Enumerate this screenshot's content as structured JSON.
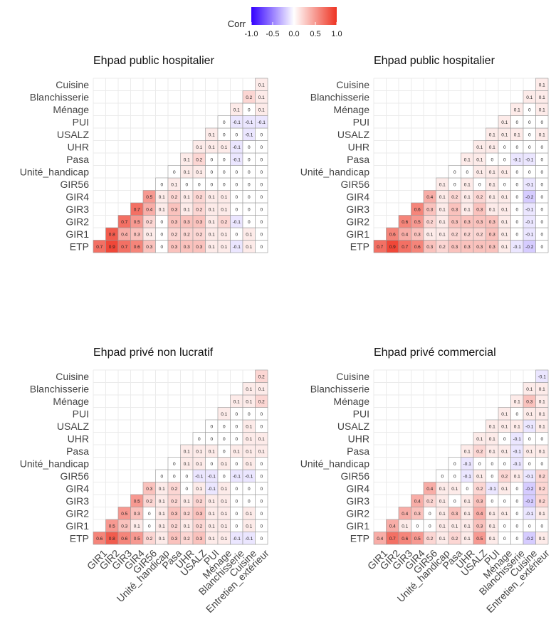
{
  "legend": {
    "title": "Corr",
    "ticks": [
      "-1.0",
      "-0.5",
      "0.0",
      "0.5",
      "1.0"
    ],
    "colors": {
      "low": "#3300ff",
      "mid": "#ffffff",
      "high": "#ee3322"
    },
    "range": [
      -1,
      1
    ]
  },
  "chart_data": [
    {
      "type": "heatmap",
      "title": "Ehpad public hospitalier",
      "show_x_labels": false,
      "y_labels": [
        "ETP",
        "GIR1",
        "GIR2",
        "GIR3",
        "GIR4",
        "GIR56",
        "Unité_handicap",
        "Pasa",
        "UHR",
        "USALZ",
        "PUI",
        "Ménage",
        "Blanchisserie",
        "Cuisine"
      ],
      "x_labels": [
        "GIR1",
        "GIR2",
        "GIR3",
        "GIR4",
        "GIR56",
        "Unité_handicap",
        "Pasa",
        "UHR",
        "USALZ",
        "PUI",
        "Ménage",
        "Blanchisserie",
        "Cuisine",
        "Entretien_extérieur"
      ],
      "rows": [
        [
          0.7,
          0.9,
          0.7,
          0.6,
          0.3,
          0,
          0.3,
          0.3,
          0.3,
          0.1,
          0.1,
          -0.1,
          0.1,
          0
        ],
        [
          0.8,
          0.4,
          0.3,
          0.1,
          0,
          0.2,
          0.2,
          0.2,
          0.1,
          0.1,
          0,
          0.1,
          0
        ],
        [
          0.7,
          0.5,
          0.2,
          0,
          0.3,
          0.3,
          0.3,
          0.1,
          0.2,
          -0.1,
          0,
          0
        ],
        [
          0.7,
          0.4,
          0.1,
          0.3,
          0.1,
          0.2,
          0.1,
          0.1,
          0,
          0,
          0
        ],
        [
          0.5,
          0.1,
          0.2,
          0.1,
          0.2,
          0.1,
          0.1,
          0,
          0,
          0
        ],
        [
          0,
          0.1,
          0,
          0,
          0,
          0,
          0,
          0,
          0
        ],
        [
          0,
          0.1,
          0.1,
          0,
          0,
          0,
          0,
          0
        ],
        [
          0.1,
          0.2,
          0,
          0,
          -0.1,
          0,
          0
        ],
        [
          0.1,
          0.1,
          0.1,
          -0.1,
          0,
          0
        ],
        [
          0.1,
          0,
          0,
          -0.1,
          0
        ],
        [
          0,
          -0.1,
          -0.1,
          -0.1
        ],
        [
          0.1,
          0,
          0.1
        ],
        [
          0.2,
          0.1
        ],
        [
          0.1
        ]
      ]
    },
    {
      "type": "heatmap",
      "title": "Ehpad public hospitalier",
      "show_x_labels": false,
      "y_labels": [
        "ETP",
        "GIR1",
        "GIR2",
        "GIR3",
        "GIR4",
        "GIR56",
        "Unité_handicap",
        "Pasa",
        "UHR",
        "USALZ",
        "PUI",
        "Ménage",
        "Blanchisserie",
        "Cuisine"
      ],
      "x_labels": [
        "GIR1",
        "GIR2",
        "GIR3",
        "GIR4",
        "GIR56",
        "Unité_handicap",
        "Pasa",
        "UHR",
        "USALZ",
        "PUI",
        "Ménage",
        "Blanchisserie",
        "Cuisine",
        "Entretien_extérieur"
      ],
      "rows": [
        [
          0.7,
          0.9,
          0.7,
          0.6,
          0.3,
          0.2,
          0.3,
          0.3,
          0.3,
          0.3,
          0.1,
          -0.1,
          -0.2,
          0
        ],
        [
          0.6,
          0.4,
          0.3,
          0.1,
          0.1,
          0.2,
          0.2,
          0.2,
          0.3,
          0.1,
          0,
          -0.1,
          0
        ],
        [
          0.6,
          0.5,
          0.2,
          0.1,
          0.3,
          0.3,
          0.3,
          0.3,
          0.1,
          0,
          -0.1,
          0
        ],
        [
          0.6,
          0.3,
          0.1,
          0.3,
          0.1,
          0.3,
          0.1,
          0.1,
          0,
          -0.1,
          0
        ],
        [
          0.4,
          0.1,
          0.2,
          0.1,
          0.2,
          0.1,
          0.1,
          0,
          -0.2,
          0
        ],
        [
          0.1,
          0,
          0.1,
          0,
          0.1,
          0,
          0,
          -0.1,
          0
        ],
        [
          0,
          0,
          0.1,
          0.1,
          0.1,
          0,
          0,
          0
        ],
        [
          0.1,
          0.1,
          0,
          0,
          -0.1,
          -0.1,
          0
        ],
        [
          0.1,
          0.1,
          0,
          0,
          0,
          0
        ],
        [
          0.1,
          0.1,
          0.1,
          0,
          0.1
        ],
        [
          0.1,
          0,
          0,
          0
        ],
        [
          0.1,
          0,
          0.1
        ],
        [
          0.1,
          0.1
        ],
        [
          0.1
        ]
      ]
    },
    {
      "type": "heatmap",
      "title": "Ehpad privé non lucratif",
      "show_x_labels": true,
      "y_labels": [
        "ETP",
        "GIR1",
        "GIR2",
        "GIR3",
        "GIR4",
        "GIR56",
        "Unité_handicap",
        "Pasa",
        "UHR",
        "USALZ",
        "PUI",
        "Ménage",
        "Blanchisserie",
        "Cuisine"
      ],
      "x_labels": [
        "GIR1",
        "GIR2",
        "GIR3",
        "GIR4",
        "GIR56",
        "Unité_handicap",
        "Pasa",
        "UHR",
        "USALZ",
        "PUI",
        "Ménage",
        "Blanchisserie",
        "Cuisine",
        "Entretien_extérieur"
      ],
      "rows": [
        [
          0.6,
          0.8,
          0.6,
          0.5,
          0.2,
          0.1,
          0.3,
          0.2,
          0.3,
          0.1,
          0.1,
          -0.1,
          -0.1,
          0
        ],
        [
          0.5,
          0.3,
          0.1,
          0,
          0.1,
          0.2,
          0.1,
          0.2,
          0.1,
          0.1,
          0,
          0.1,
          0
        ],
        [
          0.5,
          0.3,
          0,
          0.1,
          0.3,
          0.2,
          0.3,
          0.1,
          0.1,
          0,
          0.1,
          0
        ],
        [
          0.5,
          0.2,
          0.1,
          0.2,
          0.1,
          0.2,
          0.1,
          0.1,
          0,
          0,
          0
        ],
        [
          0.3,
          0.1,
          0.2,
          0,
          0.1,
          -0.1,
          0.1,
          0,
          0,
          0
        ],
        [
          0,
          0,
          0,
          -0.1,
          -0.1,
          0,
          -0.1,
          -0.1,
          0
        ],
        [
          0,
          0.1,
          0.1,
          0,
          0.1,
          0,
          0.1,
          0
        ],
        [
          0.1,
          0.1,
          0.1,
          0,
          0.1,
          0.1,
          0.1
        ],
        [
          0,
          0,
          0,
          0,
          0.1,
          0.1
        ],
        [
          0,
          0,
          0,
          0.1,
          0
        ],
        [
          0.1,
          0,
          0,
          0
        ],
        [
          0.1,
          0.1,
          0.2
        ],
        [
          0.1,
          0.1
        ],
        [
          0.2
        ]
      ]
    },
    {
      "type": "heatmap",
      "title": "Ehpad privé commercial",
      "show_x_labels": true,
      "y_labels": [
        "ETP",
        "GIR1",
        "GIR2",
        "GIR3",
        "GIR4",
        "GIR56",
        "Unité_handicap",
        "Pasa",
        "UHR",
        "USALZ",
        "PUI",
        "Ménage",
        "Blanchisserie",
        "Cuisine"
      ],
      "x_labels": [
        "GIR1",
        "GIR2",
        "GIR3",
        "GIR4",
        "GIR56",
        "Unité_handicap",
        "Pasa",
        "UHR",
        "USALZ",
        "PUI",
        "Ménage",
        "Blanchisserie",
        "Cuisine",
        "Entretien_extérieur"
      ],
      "rows": [
        [
          0.4,
          0.7,
          0.6,
          0.5,
          0.2,
          0.1,
          0.2,
          0.1,
          0.5,
          0.1,
          0,
          0,
          -0.2,
          0.1
        ],
        [
          0.4,
          0.1,
          0,
          0,
          0.1,
          0.1,
          0.1,
          0.3,
          0.1,
          0,
          0,
          0,
          0
        ],
        [
          0.4,
          0.3,
          0,
          0.1,
          0.3,
          0.1,
          0.4,
          0.1,
          0.1,
          0,
          -0.1,
          0.1
        ],
        [
          0.4,
          0.2,
          0.1,
          0,
          0.1,
          0.3,
          0,
          0,
          0,
          -0.2,
          0.2
        ],
        [
          0.4,
          0.1,
          0.1,
          0,
          0.2,
          -0.1,
          0.1,
          0,
          -0.2,
          0.2
        ],
        [
          0,
          0,
          -0.1,
          0.1,
          0,
          0.2,
          0.1,
          -0.1,
          0.2
        ],
        [
          0,
          -0.1,
          0,
          0,
          0,
          -0.1,
          0,
          0
        ],
        [
          0.1,
          0.2,
          0.1,
          0.1,
          -0.1,
          0.1,
          0.1
        ],
        [
          0.1,
          0.1,
          0,
          -0.1,
          0,
          0
        ],
        [
          0.1,
          0.1,
          0.1,
          -0.1,
          0.1
        ],
        [
          0.1,
          0,
          0.1,
          0.1
        ],
        [
          0.1,
          0.3,
          0.1
        ],
        [
          0.1,
          0.1
        ],
        [
          -0.1
        ]
      ]
    }
  ]
}
